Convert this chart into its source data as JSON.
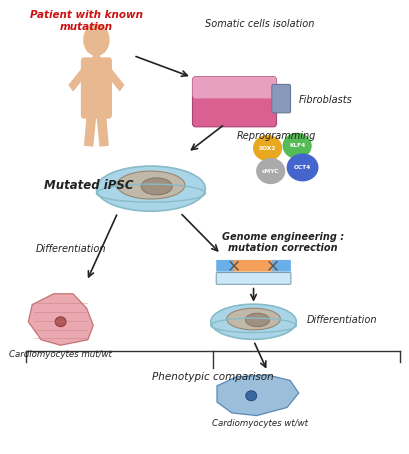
{
  "bg_color": "#ffffff",
  "text_patient": "Patient with known\nmutation",
  "text_somatic": "Somatic cells isolation",
  "text_fibroblasts": "Fibroblasts",
  "text_reprogramming": "Reprogramming",
  "text_mutated_ipsc": "Mutated iPSC",
  "text_genome_eng": "Genome engineering :\nmutation correction",
  "text_diff1": "Differentiation",
  "text_diff2": "Differentiation",
  "text_cardio_mut": "Cardiomyocytes mut/wt",
  "text_cardio_wt": "Cardiomyocytes wt/wt",
  "text_phenotypic": "Phenotypic comparison",
  "sox2_color": "#e8a820",
  "klf4_color": "#55bb55",
  "cmyc_color": "#aaaaaa",
  "oct4_color": "#4466cc",
  "gene_orange": "#f5a05a",
  "gene_blue": "#6aafe8",
  "gene_rect_color": "#cce8f8",
  "flask_pink": "#d96090",
  "flask_cap": "#8899bb",
  "petri_blue": "#aad5e8",
  "petri_rim": "#88bbc8",
  "petri_inner": "#c0b8a8",
  "body_color": "#e8b890",
  "arrow_color": "#222222",
  "red_text": "#cc1111",
  "black_text": "#222222",
  "cell1_face": "#e8a0a8",
  "cell1_edge": "#c06868",
  "cell1_nuc": "#b05858",
  "cell2_face": "#90b8d8",
  "cell2_edge": "#5080b0",
  "cell2_nuc": "#3868a0"
}
